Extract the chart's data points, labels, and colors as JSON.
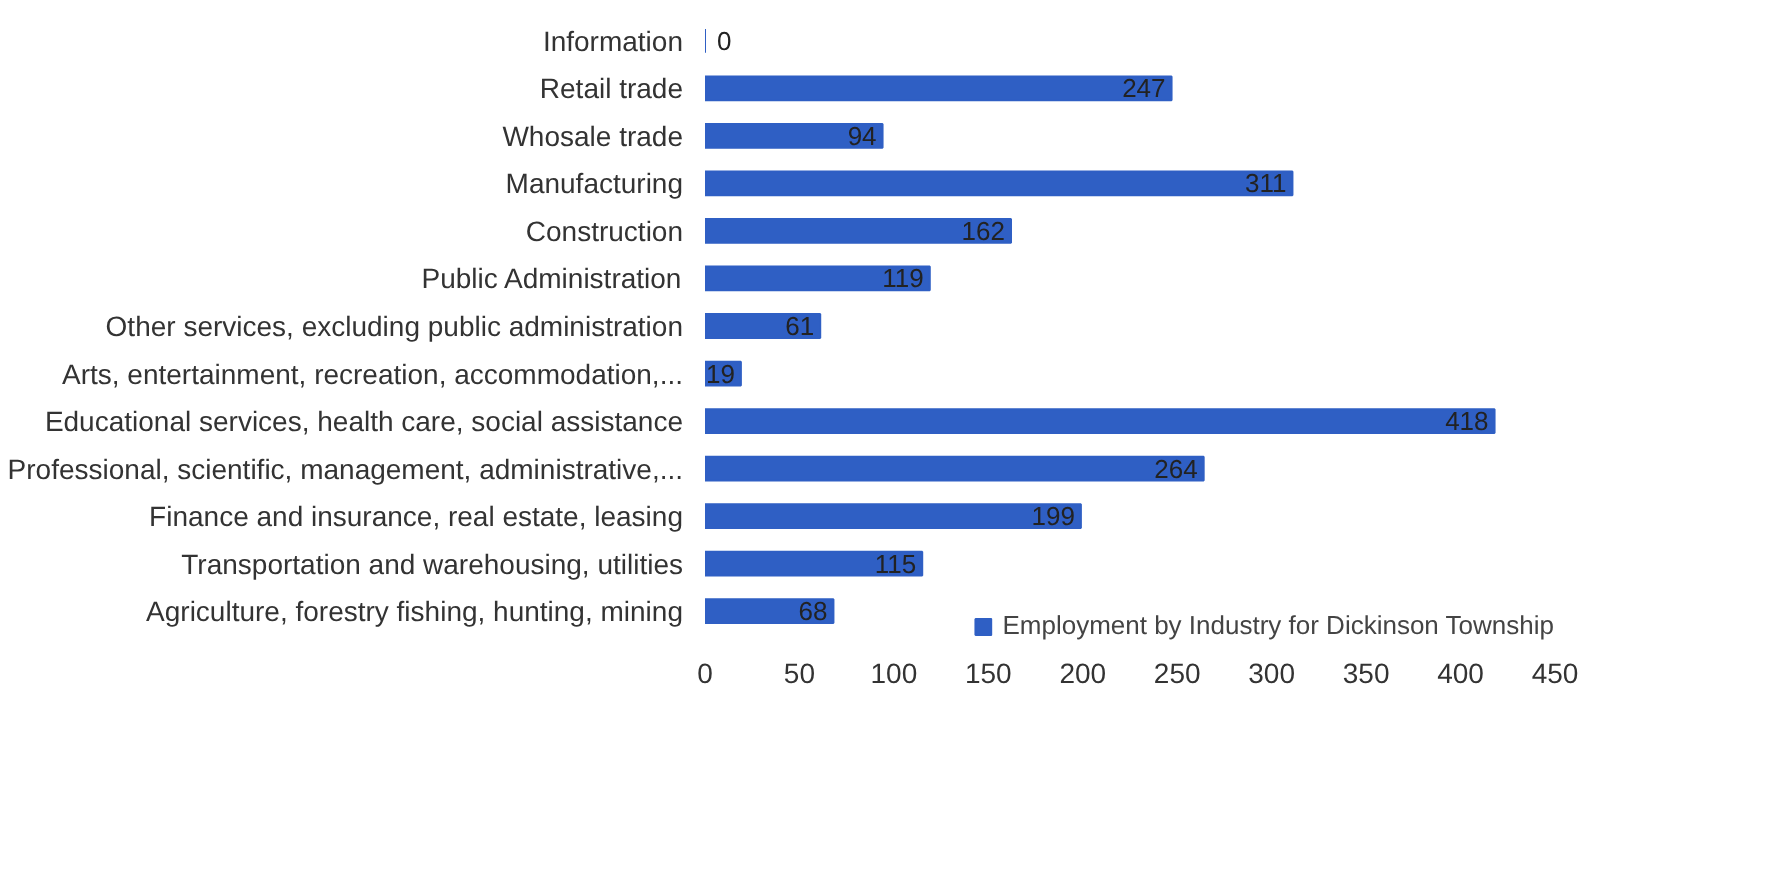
{
  "chart_data": {
    "type": "bar",
    "orientation": "horizontal",
    "categories": [
      "Information",
      "Retail trade",
      "Whosale trade",
      "Manufacturing",
      "Construction",
      "Public Administration",
      "Other services, excluding public administration",
      "Arts, entertainment, recreation, accommodation,...",
      "Educational services, health care, social assistance",
      "Professional, scientific, management, administrative,...",
      "Finance and insurance, real estate, leasing",
      "Transportation and warehousing, utilities",
      "Agriculture, forestry fishing, hunting, mining"
    ],
    "series": [
      {
        "name": "Employment by Industry for Dickinson Township",
        "color": "#2f5fc4",
        "values": [
          0,
          247,
          94,
          311,
          162,
          119,
          61,
          19,
          418,
          264,
          199,
          115,
          68
        ]
      }
    ],
    "xlim": [
      0,
      450
    ],
    "xticks": [
      0,
      50,
      100,
      150,
      200,
      250,
      300,
      350,
      400,
      450
    ],
    "data_labels": true,
    "grid": false,
    "legend": "bottom"
  }
}
